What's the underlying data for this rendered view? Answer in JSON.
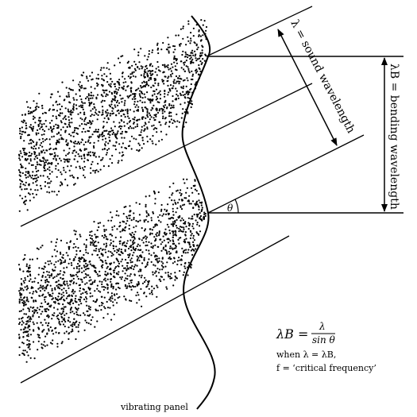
{
  "labels": {
    "sound_wavelength": "λ = sound wavelength",
    "bending_wavelength": "λB = bending wavelength",
    "theta": "θ",
    "vibrating_panel": "vibrating panel",
    "formula_lhs": "λB =",
    "formula_numerator": "λ",
    "formula_denominator": "sin θ",
    "when_line": "when λ = λB,",
    "critical_line": "f = ‘critical frequency’"
  },
  "colors": {
    "ink": "#000000",
    "background": "#ffffff"
  }
}
